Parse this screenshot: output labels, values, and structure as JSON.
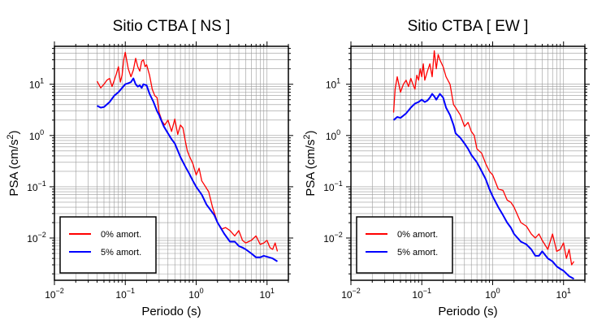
{
  "chart_data": [
    {
      "type": "line",
      "title": "Sitio CTBA [ NS ]",
      "xlabel": "Periodo (s)",
      "ylabel": "PSA (cm/s²)",
      "x_scale": "log",
      "y_scale": "log",
      "xlim": [
        0.01,
        20
      ],
      "ylim": [
        0.0015,
        55
      ],
      "grid": true,
      "legend_position": "lower-left",
      "x_ticks": [
        0.01,
        0.1,
        1,
        10
      ],
      "y_ticks": [
        0.01,
        0.1,
        1,
        10
      ],
      "series": [
        {
          "name": "0% amort.",
          "color": "#ff0000",
          "x": [
            0.04,
            0.045,
            0.05,
            0.055,
            0.06,
            0.065,
            0.07,
            0.075,
            0.08,
            0.085,
            0.09,
            0.095,
            0.1,
            0.11,
            0.12,
            0.13,
            0.14,
            0.15,
            0.16,
            0.17,
            0.18,
            0.19,
            0.2,
            0.22,
            0.24,
            0.26,
            0.28,
            0.3,
            0.33,
            0.36,
            0.4,
            0.45,
            0.5,
            0.55,
            0.6,
            0.65,
            0.7,
            0.75,
            0.8,
            0.9,
            1.0,
            1.1,
            1.2,
            1.3,
            1.5,
            1.7,
            2.0,
            2.3,
            2.6,
            3.0,
            3.5,
            4.0,
            4.5,
            5.0,
            6.0,
            7.0,
            8.0,
            9.0,
            10,
            11,
            12,
            13,
            14
          ],
          "y": [
            11.5,
            8.5,
            10.0,
            12.0,
            13.0,
            9.0,
            12.0,
            16.0,
            22.0,
            11.0,
            15.0,
            30.0,
            42.0,
            20.0,
            14.0,
            19.0,
            32.0,
            22.0,
            18.0,
            28.0,
            30.0,
            22.0,
            24.0,
            15.0,
            8.0,
            6.0,
            5.5,
            2.8,
            1.9,
            1.6,
            2.0,
            1.2,
            2.1,
            1.05,
            1.6,
            1.4,
            0.8,
            0.5,
            0.4,
            0.28,
            0.17,
            0.23,
            0.13,
            0.11,
            0.08,
            0.04,
            0.02,
            0.015,
            0.016,
            0.014,
            0.011,
            0.014,
            0.009,
            0.008,
            0.009,
            0.011,
            0.0075,
            0.008,
            0.009,
            0.0065,
            0.006,
            0.008,
            0.0055
          ]
        },
        {
          "name": "5% amort.",
          "color": "#0000ff",
          "x": [
            0.04,
            0.045,
            0.05,
            0.06,
            0.07,
            0.08,
            0.09,
            0.1,
            0.11,
            0.12,
            0.13,
            0.14,
            0.15,
            0.16,
            0.17,
            0.18,
            0.2,
            0.22,
            0.25,
            0.28,
            0.3,
            0.35,
            0.4,
            0.45,
            0.5,
            0.6,
            0.7,
            0.8,
            0.9,
            1.0,
            1.2,
            1.4,
            1.6,
            1.8,
            2.0,
            2.5,
            3.0,
            3.5,
            4.0,
            4.5,
            5.0,
            6.0,
            7.0,
            8.0,
            9.0,
            10,
            12,
            14
          ],
          "y": [
            3.8,
            3.5,
            3.6,
            4.5,
            6.0,
            7.0,
            8.5,
            10.0,
            10.5,
            11.0,
            13.0,
            10.0,
            9.0,
            9.5,
            8.5,
            10.0,
            9.5,
            6.5,
            4.5,
            3.0,
            2.5,
            1.5,
            1.1,
            0.85,
            0.7,
            0.38,
            0.25,
            0.18,
            0.13,
            0.1,
            0.07,
            0.045,
            0.035,
            0.028,
            0.02,
            0.012,
            0.0085,
            0.0085,
            0.007,
            0.0065,
            0.006,
            0.005,
            0.0042,
            0.0042,
            0.0045,
            0.0043,
            0.004,
            0.0035
          ]
        }
      ]
    },
    {
      "type": "line",
      "title": "Sitio CTBA [ EW ]",
      "xlabel": "Periodo (s)",
      "ylabel": "PSA (cm/s²)",
      "x_scale": "log",
      "y_scale": "log",
      "xlim": [
        0.01,
        20
      ],
      "ylim": [
        0.0015,
        55
      ],
      "grid": true,
      "legend_position": "lower-left",
      "x_ticks": [
        0.01,
        0.1,
        1,
        10
      ],
      "y_ticks": [
        0.01,
        0.1,
        1,
        10
      ],
      "series": [
        {
          "name": "0% amort.",
          "color": "#ff0000",
          "x": [
            0.04,
            0.042,
            0.045,
            0.05,
            0.055,
            0.06,
            0.065,
            0.07,
            0.075,
            0.08,
            0.085,
            0.09,
            0.095,
            0.1,
            0.105,
            0.11,
            0.12,
            0.13,
            0.14,
            0.15,
            0.16,
            0.17,
            0.18,
            0.2,
            0.22,
            0.25,
            0.28,
            0.3,
            0.35,
            0.4,
            0.45,
            0.5,
            0.55,
            0.6,
            0.7,
            0.8,
            0.9,
            1.0,
            1.2,
            1.4,
            1.6,
            1.8,
            2.0,
            2.5,
            3.0,
            3.5,
            4.0,
            4.5,
            5.0,
            6.0,
            7.0,
            8.0,
            9.0,
            10,
            11,
            12,
            13,
            14
          ],
          "y": [
            2.8,
            8.0,
            14.0,
            7.0,
            10.0,
            12.0,
            9.0,
            13.0,
            10.0,
            8.0,
            15.0,
            12.0,
            20.0,
            14.0,
            25.0,
            12.0,
            18.0,
            25.0,
            14.0,
            45.0,
            20.0,
            38.0,
            30.0,
            22.0,
            14.0,
            10.0,
            4.0,
            3.5,
            2.5,
            1.5,
            1.8,
            1.2,
            1.0,
            0.55,
            0.45,
            0.28,
            0.2,
            0.17,
            0.09,
            0.085,
            0.055,
            0.05,
            0.04,
            0.02,
            0.017,
            0.012,
            0.01,
            0.012,
            0.009,
            0.006,
            0.012,
            0.0055,
            0.006,
            0.008,
            0.004,
            0.006,
            0.003,
            0.0035
          ]
        },
        {
          "name": "5% amort.",
          "color": "#0000ff",
          "x": [
            0.04,
            0.045,
            0.05,
            0.06,
            0.07,
            0.08,
            0.09,
            0.1,
            0.11,
            0.12,
            0.13,
            0.14,
            0.15,
            0.16,
            0.18,
            0.2,
            0.22,
            0.25,
            0.28,
            0.3,
            0.35,
            0.4,
            0.45,
            0.5,
            0.6,
            0.7,
            0.8,
            0.9,
            1.0,
            1.2,
            1.4,
            1.6,
            1.8,
            2.0,
            2.5,
            3.0,
            3.5,
            4.0,
            4.5,
            5.0,
            6.0,
            7.0,
            8.0,
            9.0,
            10,
            12,
            14
          ],
          "y": [
            2.0,
            2.3,
            2.2,
            2.7,
            3.5,
            4.2,
            4.5,
            5.0,
            4.5,
            4.8,
            5.5,
            6.5,
            5.8,
            5.0,
            6.5,
            5.5,
            3.5,
            2.5,
            1.6,
            1.1,
            0.9,
            0.7,
            0.55,
            0.42,
            0.3,
            0.2,
            0.14,
            0.09,
            0.065,
            0.04,
            0.028,
            0.02,
            0.016,
            0.012,
            0.0085,
            0.0075,
            0.006,
            0.0045,
            0.0045,
            0.0055,
            0.004,
            0.0035,
            0.0028,
            0.0025,
            0.0023,
            0.0018,
            0.0016
          ]
        }
      ]
    }
  ]
}
